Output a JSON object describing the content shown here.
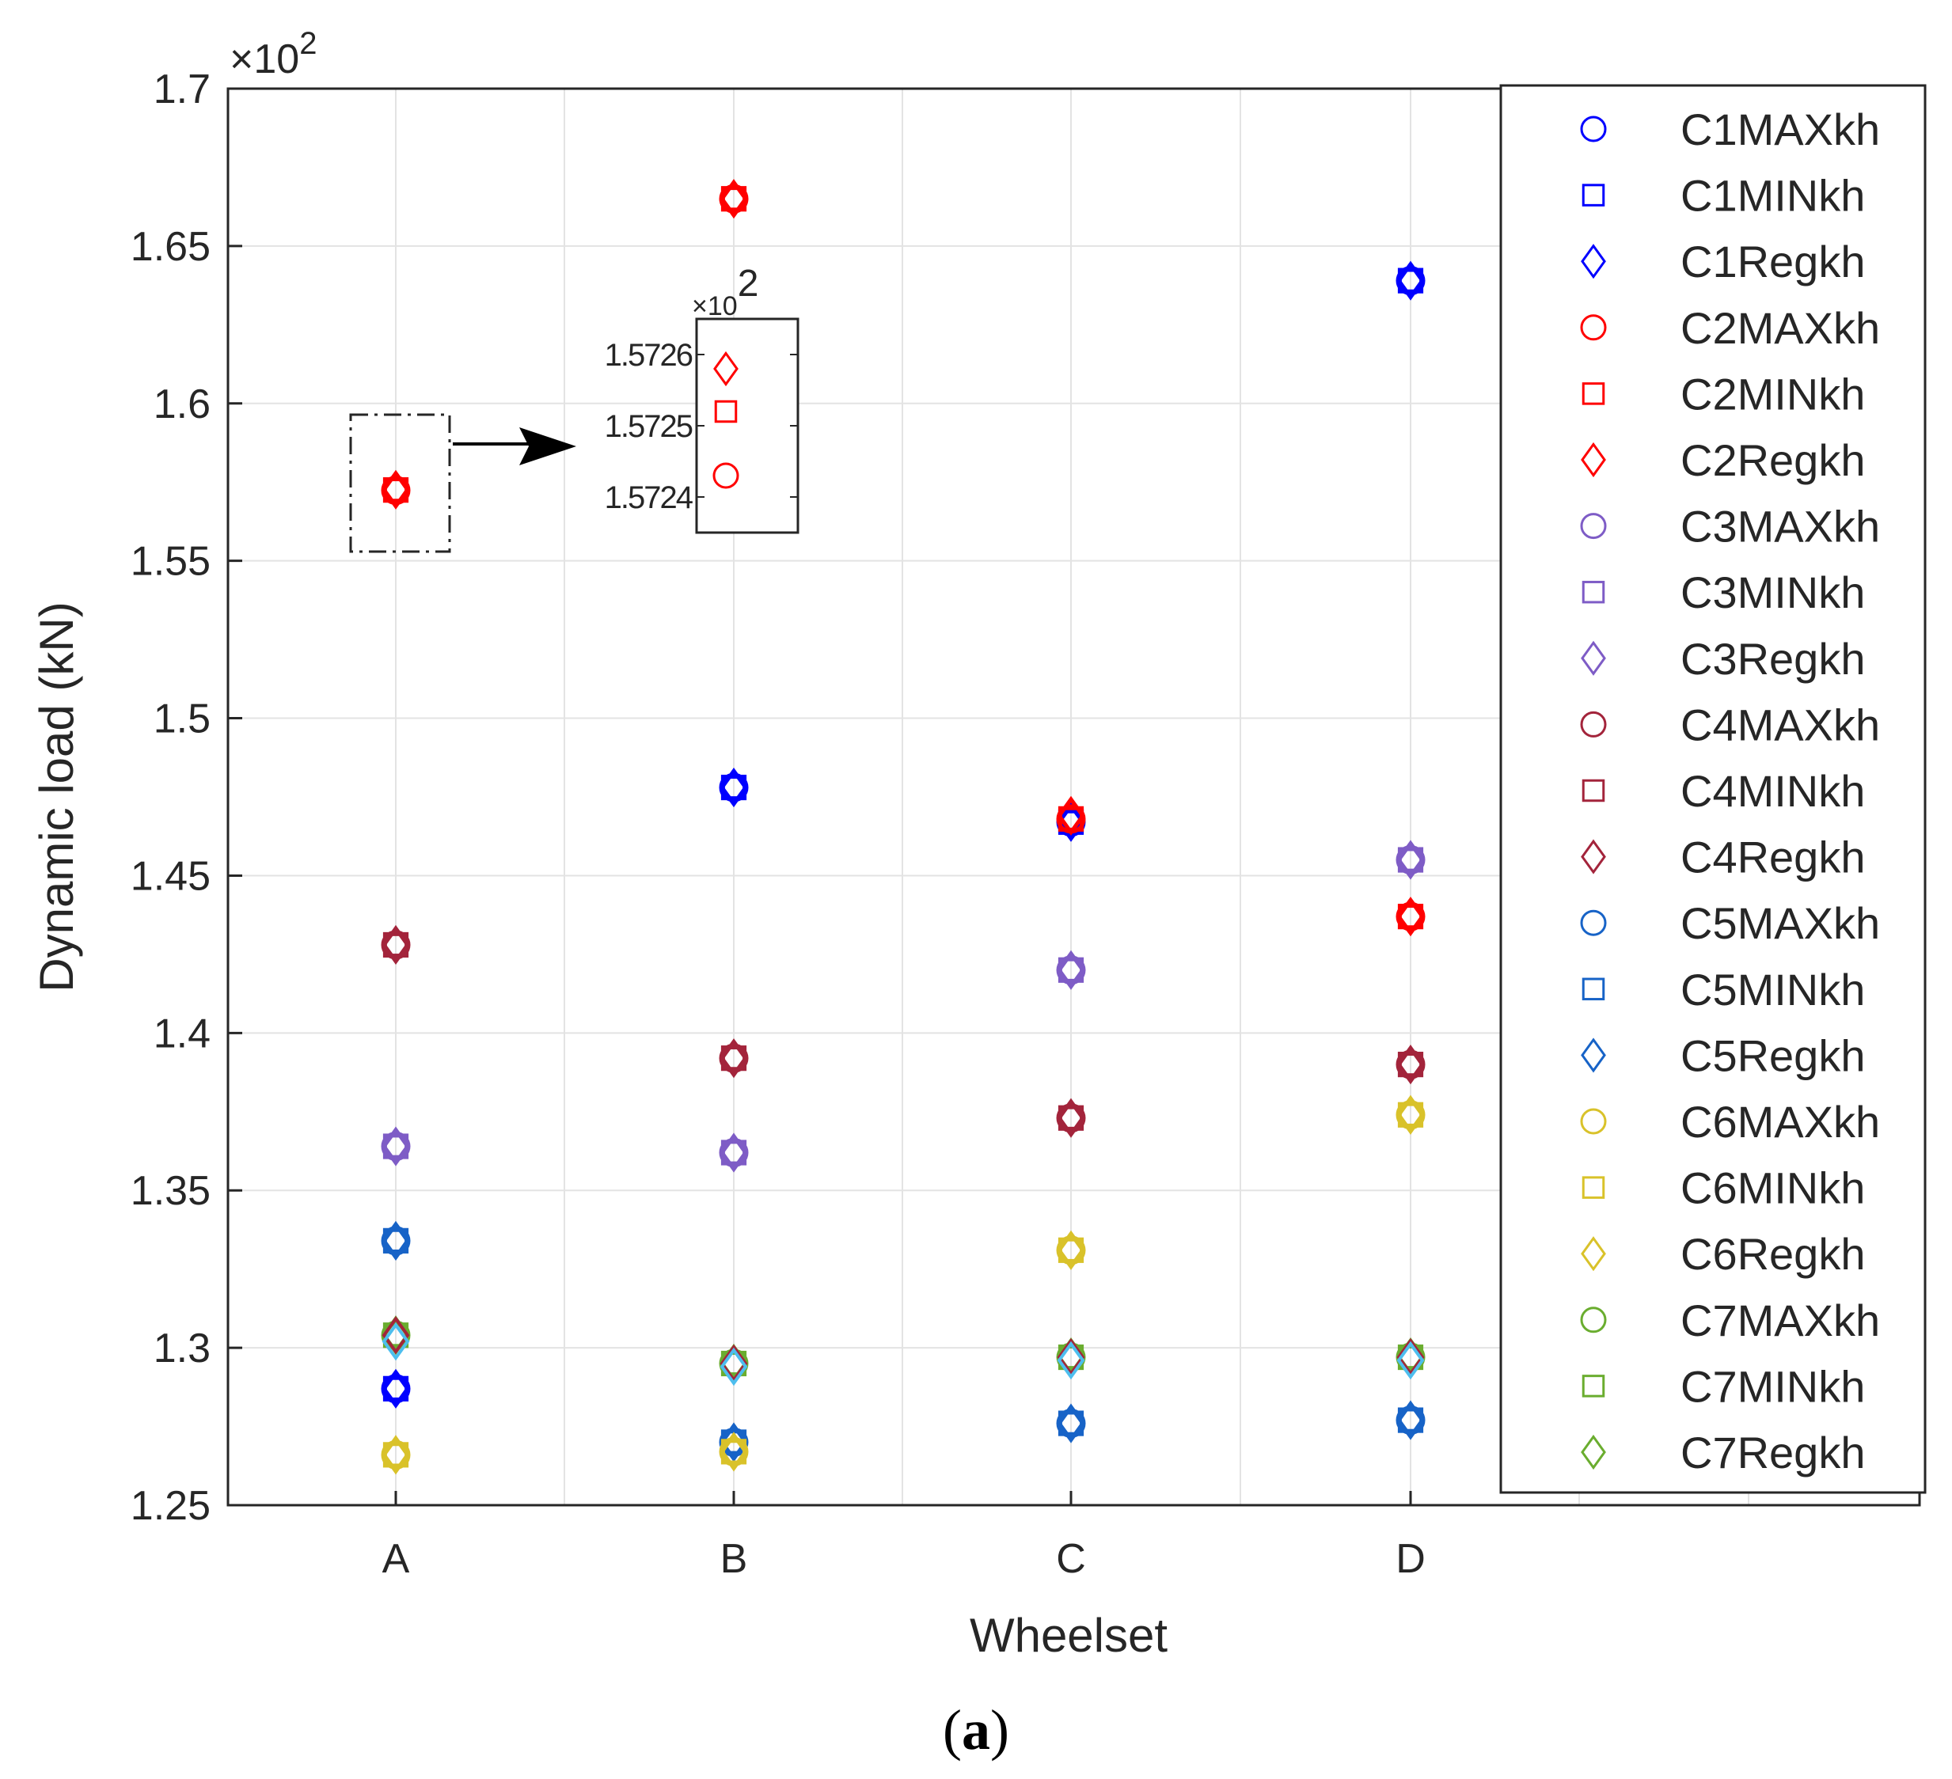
{
  "chart_data": {
    "type": "scatter",
    "xlabel": "Wheelset",
    "ylabel": "Dynamic load (kN)",
    "y_multiplier": "×10",
    "y_multiplier_exp": "2",
    "ylim": [
      1.25,
      1.7
    ],
    "yticks": [
      1.25,
      1.3,
      1.35,
      1.4,
      1.45,
      1.5,
      1.55,
      1.6,
      1.65,
      1.7
    ],
    "ytick_labels": [
      "1.25",
      "1.3",
      "1.35",
      "1.4",
      "1.45",
      "1.5",
      "1.55",
      "1.6",
      "1.65",
      "1.7"
    ],
    "categories": [
      "A",
      "B",
      "C",
      "D"
    ],
    "grid": true,
    "legend_position": "right",
    "series": [
      {
        "name": "C1MAXkh",
        "marker": "circle",
        "color": "#0000ff",
        "values": [
          1.287,
          1.478,
          1.467,
          1.639
        ]
      },
      {
        "name": "C1MINkh",
        "marker": "square",
        "color": "#0000ff",
        "values": [
          1.287,
          1.478,
          1.467,
          1.639
        ]
      },
      {
        "name": "C1Regkh",
        "marker": "diamond",
        "color": "#0000ff",
        "values": [
          1.287,
          1.478,
          1.467,
          1.639
        ]
      },
      {
        "name": "C2MAXkh",
        "marker": "circle",
        "color": "#ff0000",
        "values": [
          1.5724,
          1.665,
          1.468,
          1.437
        ]
      },
      {
        "name": "C2MINkh",
        "marker": "square",
        "color": "#ff0000",
        "values": [
          1.5725,
          1.665,
          1.468,
          1.437
        ]
      },
      {
        "name": "C2Regkh",
        "marker": "diamond",
        "color": "#ff0000",
        "values": [
          1.5726,
          1.665,
          1.469,
          1.437
        ]
      },
      {
        "name": "C3MAXkh",
        "marker": "circle",
        "color": "#7e5cc6",
        "values": [
          1.364,
          1.362,
          1.42,
          1.455
        ]
      },
      {
        "name": "C3MINkh",
        "marker": "square",
        "color": "#7e5cc6",
        "values": [
          1.364,
          1.362,
          1.42,
          1.455
        ]
      },
      {
        "name": "C3Regkh",
        "marker": "diamond",
        "color": "#7e5cc6",
        "values": [
          1.364,
          1.362,
          1.42,
          1.455
        ]
      },
      {
        "name": "C4MAXkh",
        "marker": "circle",
        "color": "#a3243b",
        "values": [
          1.428,
          1.392,
          1.373,
          1.39
        ]
      },
      {
        "name": "C4MINkh",
        "marker": "square",
        "color": "#a3243b",
        "values": [
          1.428,
          1.392,
          1.373,
          1.39
        ]
      },
      {
        "name": "C4Regkh",
        "marker": "diamond",
        "color": "#a3243b",
        "values": [
          1.428,
          1.392,
          1.373,
          1.39
        ]
      },
      {
        "name": "C5MAXkh",
        "marker": "circle",
        "color": "#1763c7",
        "values": [
          1.334,
          1.27,
          1.276,
          1.277
        ]
      },
      {
        "name": "C5MINkh",
        "marker": "square",
        "color": "#1763c7",
        "values": [
          1.334,
          1.27,
          1.276,
          1.277
        ]
      },
      {
        "name": "C5Regkh",
        "marker": "diamond",
        "color": "#1763c7",
        "values": [
          1.334,
          1.27,
          1.276,
          1.277
        ]
      },
      {
        "name": "C6MAXkh",
        "marker": "circle",
        "color": "#d9c22a",
        "values": [
          1.266,
          1.267,
          1.331,
          1.374
        ]
      },
      {
        "name": "C6MINkh",
        "marker": "square",
        "color": "#d9c22a",
        "values": [
          1.266,
          1.267,
          1.331,
          1.374
        ]
      },
      {
        "name": "C6Regkh",
        "marker": "diamond",
        "color": "#d9c22a",
        "values": [
          1.266,
          1.267,
          1.331,
          1.374
        ]
      },
      {
        "name": "C7MAXkh",
        "marker": "circle",
        "color": "#6aad2f",
        "values": [
          1.304,
          1.295,
          1.297,
          1.297
        ]
      },
      {
        "name": "C7MINkh",
        "marker": "square",
        "color": "#6aad2f",
        "values": [
          1.304,
          1.295,
          1.297,
          1.297
        ]
      },
      {
        "name": "C7Regkh",
        "marker": "diamond",
        "color": "#6aad2f",
        "values": [
          1.304,
          1.295,
          1.297,
          1.297
        ]
      }
    ],
    "overlay_points": [
      {
        "category": "A",
        "value": 1.304,
        "color": "#a3243b"
      },
      {
        "category": "B",
        "value": 1.295,
        "color": "#a3243b"
      },
      {
        "category": "C",
        "value": 1.297,
        "color": "#a3243b"
      },
      {
        "category": "D",
        "value": 1.297,
        "color": "#a3243b"
      },
      {
        "category": "A",
        "value": 1.302,
        "color": "#4dbeee"
      },
      {
        "category": "B",
        "value": 1.294,
        "color": "#4dbeee"
      },
      {
        "category": "C",
        "value": 1.296,
        "color": "#4dbeee"
      },
      {
        "category": "D",
        "value": 1.296,
        "color": "#4dbeee"
      }
    ],
    "inset": {
      "zoom_category": "A",
      "ylim": [
        1.57235,
        1.57265
      ],
      "multiplier": "×10",
      "multiplier_exp": "2",
      "ytick_labels": [
        "1.5726",
        "1.5725",
        "1.5724"
      ],
      "yticks": [
        1.5726,
        1.5725,
        1.5724
      ],
      "points": [
        {
          "series": "C2Regkh",
          "marker": "diamond",
          "value": 1.57258,
          "color": "#ff0000"
        },
        {
          "series": "C2MINkh",
          "marker": "square",
          "value": 1.57252,
          "color": "#ff0000"
        },
        {
          "series": "C2MAXkh",
          "marker": "circle",
          "value": 1.57243,
          "color": "#ff0000"
        }
      ]
    }
  },
  "caption": {
    "open": "(",
    "letter": "a",
    "close": ")"
  }
}
